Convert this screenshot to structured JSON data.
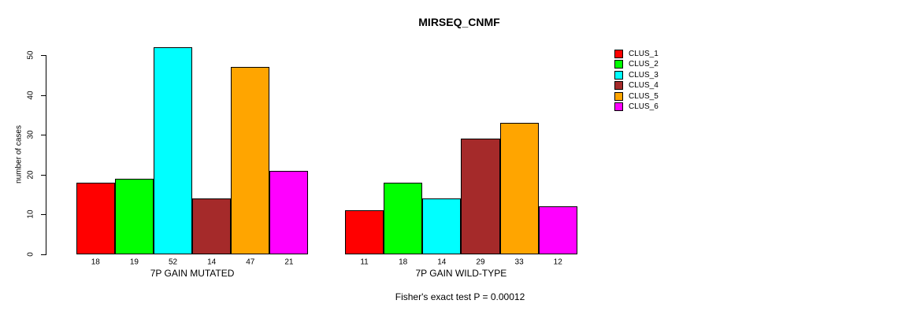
{
  "chart_data": {
    "type": "bar",
    "title": "MIRSEQ_CNMF",
    "xlabel": "",
    "ylabel": "number of cases",
    "ylim": [
      0,
      52
    ],
    "yticks": [
      0,
      10,
      20,
      30,
      40,
      50
    ],
    "grid": false,
    "legend_position": "top-right-outside",
    "bar_value_labels": true,
    "categories": [
      "7P GAIN MUTATED",
      "7P GAIN WILD-TYPE"
    ],
    "series": [
      {
        "name": "CLUS_1",
        "color": "#FF0000",
        "values": [
          18,
          11
        ]
      },
      {
        "name": "CLUS_2",
        "color": "#00FF00",
        "values": [
          19,
          18
        ]
      },
      {
        "name": "CLUS_3",
        "color": "#00FFFF",
        "values": [
          52,
          14
        ]
      },
      {
        "name": "CLUS_4",
        "color": "#A52A2A",
        "values": [
          14,
          29
        ]
      },
      {
        "name": "CLUS_5",
        "color": "#FFA500",
        "values": [
          47,
          33
        ]
      },
      {
        "name": "CLUS_6",
        "color": "#FF00FF",
        "values": [
          21,
          12
        ]
      }
    ],
    "annotation": "Fisher's exact test P = 0.00012",
    "text_color": "#000000",
    "background_color": "#FFFFFF"
  }
}
